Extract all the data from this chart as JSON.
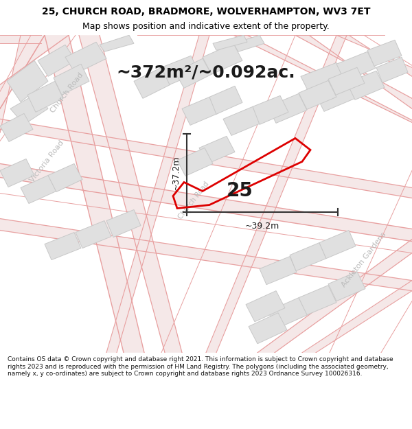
{
  "title_line1": "25, CHURCH ROAD, BRADMORE, WOLVERHAMPTON, WV3 7ET",
  "title_line2": "Map shows position and indicative extent of the property.",
  "area_text": "~372m²/~0.092ac.",
  "property_number": "25",
  "dim_vertical": "~37.2m",
  "dim_horizontal": "~39.2m",
  "footnote": "Contains OS data © Crown copyright and database right 2021. This information is subject to Crown copyright and database rights 2023 and is reproduced with the permission of HM Land Registry. The polygons (including the associated geometry, namely x, y co-ordinates) are subject to Crown copyright and database rights 2023 Ordnance Survey 100026316.",
  "map_bg": "#f2f2f2",
  "road_line_color": "#e8a0a0",
  "road_fill_color": "#f5e8e8",
  "building_fill": "#e0e0e0",
  "building_edge": "#c8c8c8",
  "property_color": "#dd0000",
  "dim_color": "#333333",
  "road_label_color": "#bbbbbb",
  "num_color": "#1a1a1a",
  "title_size": 10,
  "subtitle_size": 9,
  "area_size": 18,
  "number_size": 20,
  "dim_label_size": 9,
  "road_label_size": 8,
  "footnote_size": 6.5,
  "road_lw_main": 1.2,
  "road_lw_minor": 0.7
}
